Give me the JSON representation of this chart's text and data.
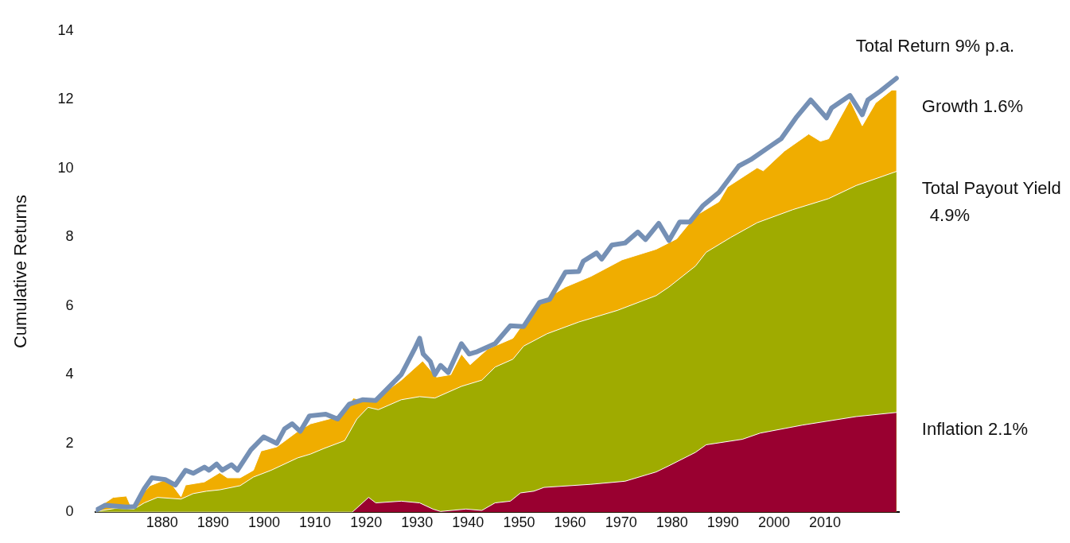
{
  "chart_data": {
    "type": "area",
    "ylabel": "Cumulative Returns",
    "xlim": [
      1867,
      2024.5
    ],
    "xticks": [
      1880,
      1890,
      1900,
      1910,
      1920,
      1930,
      1940,
      1950,
      1960,
      1970,
      1980,
      1990,
      2000,
      2010
    ],
    "ylim": [
      0,
      14
    ],
    "yticks": [
      0,
      2,
      4,
      6,
      8,
      10,
      12,
      14
    ],
    "series": [
      {
        "name": "Total Return 9% p.a.",
        "type": "line",
        "color": "#7590b5",
        "x": [
          1867,
          1868.8,
          1873,
          1874.6,
          1876.5,
          1878,
          1880.6,
          1882.6,
          1884.6,
          1886.1,
          1888.3,
          1889.2,
          1890.7,
          1891.8,
          1893.6,
          1894.8,
          1897.4,
          1899.9,
          1902.5,
          1904,
          1905.5,
          1907.1,
          1908.9,
          1912.1,
          1914.4,
          1916.7,
          1919.3,
          1921.9,
          1924.3,
          1926.9,
          1929.5,
          1930.5,
          1931.2,
          1932.6,
          1933.5,
          1934.6,
          1936.1,
          1938.7,
          1940.2,
          1941.8,
          1945.3,
          1948.3,
          1950.9,
          1954,
          1956,
          1959.1,
          1961.7,
          1962.6,
          1965.2,
          1966.2,
          1968.2,
          1970.8,
          1973.3,
          1974.8,
          1977.4,
          1979.4,
          1981.5,
          1983.5,
          1986.1,
          1989.2,
          1993.1,
          1995.4,
          1999.6,
          2001.4,
          2004.3,
          2007.2,
          2010.3,
          2011.3,
          2014.9,
          2017.3,
          2018.4,
          2020.8,
          2024
        ],
        "values": [
          0.05,
          0.2,
          0.15,
          0.16,
          0.68,
          1.0,
          0.95,
          0.79,
          1.22,
          1.13,
          1.31,
          1.22,
          1.4,
          1.22,
          1.38,
          1.22,
          1.81,
          2.19,
          2.0,
          2.42,
          2.57,
          2.35,
          2.8,
          2.85,
          2.71,
          3.14,
          3.27,
          3.25,
          3.61,
          4.0,
          4.74,
          5.06,
          4.6,
          4.38,
          4.0,
          4.27,
          4.06,
          4.9,
          4.6,
          4.67,
          4.9,
          5.42,
          5.4,
          6.1,
          6.19,
          6.98,
          7.0,
          7.3,
          7.54,
          7.36,
          7.77,
          7.83,
          8.15,
          7.93,
          8.4,
          7.9,
          8.44,
          8.44,
          8.92,
          9.3,
          10.07,
          10.25,
          10.68,
          10.86,
          11.47,
          11.99,
          11.47,
          11.76,
          12.12,
          11.56,
          11.99,
          12.24,
          12.62
        ]
      },
      {
        "name": "Inflation 2.1%",
        "color": "#990030",
        "x": [
          1867,
          1917.3,
          1920.5,
          1921.9,
          1926.9,
          1930.5,
          1933.1,
          1934.6,
          1939.6,
          1942.7,
          1945.3,
          1948.3,
          1950.3,
          1952.9,
          1954.9,
          1964.1,
          1970.8,
          1976.9,
          1979.4,
          1984.6,
          1986.7,
          1993.8,
          1997.3,
          2005.5,
          2016.1,
          2024
        ],
        "values": [
          0,
          0,
          0.43,
          0.27,
          0.32,
          0.27,
          0.09,
          0.02,
          0.09,
          0.05,
          0.27,
          0.32,
          0.56,
          0.61,
          0.72,
          0.81,
          0.9,
          1.17,
          1.35,
          1.74,
          1.96,
          2.12,
          2.3,
          2.53,
          2.78,
          2.9
        ]
      },
      {
        "name": "Total Payout Yield 4.9%",
        "color": "#9fab00",
        "x": [
          1867,
          1870.8,
          1874.5,
          1876.5,
          1879.1,
          1883.7,
          1886.1,
          1888.7,
          1891.3,
          1895.3,
          1897.9,
          1901.4,
          1906.6,
          1909.1,
          1911.7,
          1915.8,
          1918.2,
          1920.4,
          1922.4,
          1926.9,
          1930.5,
          1933.5,
          1938.7,
          1942.7,
          1945.3,
          1948.8,
          1950.9,
          1955.5,
          1961.7,
          1969.3,
          1976.9,
          1979.4,
          1984.6,
          1986.7,
          1991.5,
          1996.7,
          2003.7,
          2010.7,
          2016.1,
          2024
        ],
        "values": [
          0.02,
          0.11,
          0.09,
          0.27,
          0.43,
          0.38,
          0.54,
          0.61,
          0.65,
          0.77,
          1.02,
          1.22,
          1.58,
          1.69,
          1.85,
          2.08,
          2.71,
          3.05,
          2.98,
          3.27,
          3.36,
          3.32,
          3.66,
          3.84,
          4.22,
          4.45,
          4.83,
          5.19,
          5.53,
          5.87,
          6.3,
          6.55,
          7.16,
          7.56,
          7.99,
          8.42,
          8.8,
          9.12,
          9.5,
          9.91
        ]
      },
      {
        "name": "Growth 1.6%",
        "color": "#f0ad00",
        "x": [
          1867,
          1868.1,
          1870.4,
          1873,
          1873.9,
          1877.6,
          1881.1,
          1883.7,
          1884.6,
          1888.3,
          1891.3,
          1892.8,
          1895.3,
          1897.9,
          1899.4,
          1902.5,
          1906.6,
          1909.1,
          1913.2,
          1914.7,
          1917.5,
          1919.8,
          1921.9,
          1922.8,
          1926.9,
          1931.1,
          1933.8,
          1936.6,
          1938.7,
          1940.4,
          1943.8,
          1948.8,
          1953.4,
          1959.1,
          1964.1,
          1970.2,
          1976.9,
          1980.9,
          1984.6,
          1989.2,
          1990.9,
          1996.7,
          1997.9,
          2002,
          2006.8,
          2009.1,
          2010.7,
          2014.9,
          2017.3,
          2019.9,
          2023.1,
          2024
        ],
        "values": [
          0.05,
          0.2,
          0.43,
          0.47,
          0.16,
          0.77,
          0.97,
          0.45,
          0.79,
          0.88,
          1.15,
          1.0,
          1.0,
          1.22,
          1.78,
          1.9,
          2.35,
          2.57,
          2.73,
          2.69,
          3.32,
          3.25,
          3.23,
          3.39,
          3.84,
          4.4,
          3.93,
          4.0,
          4.6,
          4.29,
          4.74,
          5.06,
          6.03,
          6.55,
          6.86,
          7.34,
          7.65,
          7.95,
          8.62,
          9.03,
          9.46,
          10.02,
          9.93,
          10.5,
          11.0,
          10.79,
          10.86,
          11.99,
          11.24,
          11.9,
          12.28,
          12.28
        ]
      }
    ]
  }
}
